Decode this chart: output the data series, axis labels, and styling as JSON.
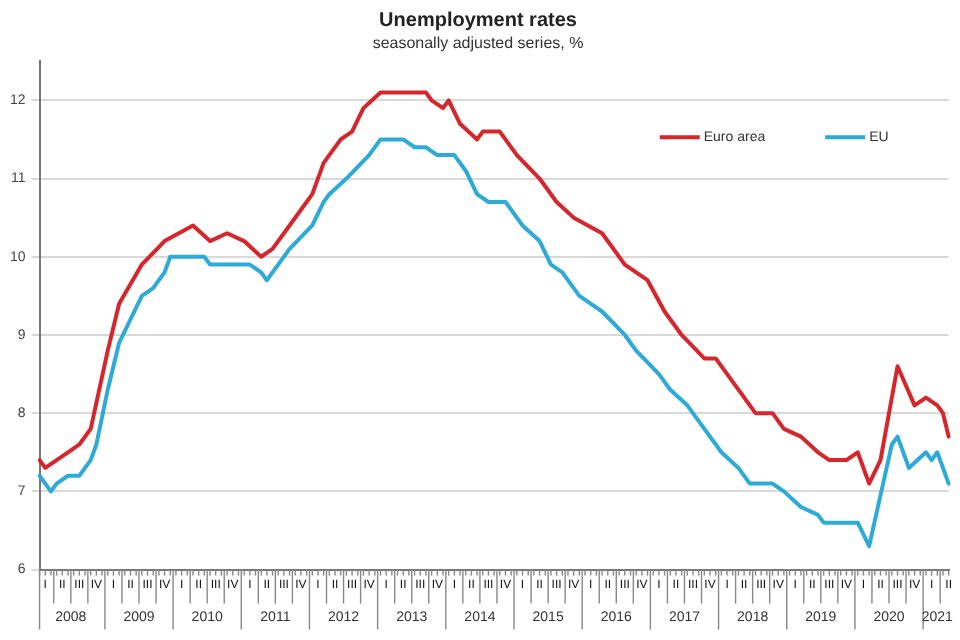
{
  "chart_data": {
    "type": "line",
    "title": "Unemployment rates",
    "subtitle": "seasonally adjusted series, %",
    "categories": [
      null,
      "I",
      null,
      null,
      "II",
      null,
      null,
      "III",
      null,
      null,
      "IV",
      null,
      null,
      "I",
      null,
      null,
      "II",
      null,
      null,
      "III",
      null,
      null,
      "IV",
      null,
      null,
      "I",
      null,
      null,
      "II",
      null,
      null,
      "III",
      null,
      null,
      "IV",
      null,
      null,
      "I",
      null,
      null,
      "II",
      null,
      null,
      "III",
      null,
      null,
      "IV",
      null,
      null,
      "I",
      null,
      null,
      "II",
      null,
      null,
      "III",
      null,
      null,
      "IV",
      null,
      null,
      "I",
      null,
      null,
      "II",
      null,
      null,
      "III",
      null,
      null,
      "IV",
      null,
      null,
      "I",
      null,
      null,
      "II",
      null,
      null,
      "III",
      null,
      null,
      "IV",
      null,
      null,
      "I",
      null,
      null,
      "II",
      null,
      null,
      "III",
      null,
      null,
      "IV",
      null,
      null,
      "I",
      null,
      null,
      "II",
      null,
      null,
      "III",
      null,
      null,
      "IV",
      null,
      null,
      "I",
      null,
      null,
      "II",
      null,
      null,
      "III",
      null,
      null,
      "IV",
      null,
      null,
      "I",
      null,
      null,
      "II",
      null,
      null,
      "III",
      null,
      null,
      "IV",
      null,
      null,
      "I",
      null,
      null,
      "II",
      null,
      null,
      "III",
      null,
      null,
      "IV",
      null,
      null,
      "I",
      null,
      null,
      "II",
      null,
      null,
      "III",
      null,
      null,
      "IV",
      null,
      null,
      "I",
      null,
      null,
      "II"
    ],
    "annotations": [
      "2008",
      "2009",
      "2010",
      "2011",
      "2012",
      "2013",
      "2014",
      "2015",
      "2016",
      "2017",
      "2018",
      "2019",
      "2020",
      "2021"
    ],
    "ylim": [
      6,
      12.5
    ],
    "yticks": [
      6,
      7,
      8,
      9,
      10,
      11,
      12
    ],
    "grid": "y",
    "legend": "top right",
    "marker": "none",
    "line_style": "solid",
    "series": [
      {
        "name": "Euro area",
        "color": "#d7262b",
        "values": [
          7.4,
          7.3,
          null,
          7.4,
          null,
          7.5,
          null,
          7.6,
          null,
          7.8,
          null,
          null,
          8.8,
          null,
          9.4,
          null,
          null,
          null,
          9.9,
          null,
          null,
          null,
          10.2,
          null,
          null,
          null,
          null,
          10.4,
          null,
          null,
          10.2,
          null,
          null,
          10.3,
          null,
          null,
          10.2,
          null,
          null,
          10.0,
          null,
          10.1,
          null,
          null,
          10.4,
          null,
          null,
          null,
          10.8,
          null,
          11.2,
          null,
          null,
          11.5,
          null,
          11.6,
          null,
          11.9,
          null,
          null,
          12.1,
          null,
          null,
          null,
          null,
          null,
          null,
          null,
          12.1,
          12.0,
          null,
          11.9,
          12.0,
          null,
          11.7,
          null,
          null,
          11.5,
          11.6,
          null,
          null,
          11.6,
          null,
          null,
          11.3,
          null,
          null,
          null,
          11.0,
          null,
          null,
          10.7,
          null,
          null,
          10.5,
          null,
          null,
          null,
          null,
          10.3,
          null,
          null,
          null,
          9.9,
          null,
          null,
          null,
          9.7,
          null,
          null,
          9.3,
          null,
          null,
          9.0,
          null,
          null,
          null,
          8.7,
          null,
          8.7,
          null,
          null,
          null,
          null,
          null,
          null,
          8.0,
          null,
          null,
          8.0,
          null,
          7.8,
          null,
          null,
          7.7,
          null,
          null,
          7.5,
          null,
          7.4,
          null,
          null,
          7.4,
          null,
          7.5,
          null,
          7.1,
          null,
          7.4,
          null,
          null,
          8.6,
          null,
          null,
          8.1,
          null,
          8.2,
          null,
          8.1,
          8.0,
          7.7
        ]
      },
      {
        "name": "EU",
        "color": "#2eaad8",
        "values": [
          7.2,
          null,
          7.0,
          7.1,
          null,
          7.2,
          null,
          7.2,
          null,
          7.4,
          7.6,
          null,
          8.3,
          null,
          8.9,
          null,
          9.2,
          null,
          9.5,
          null,
          9.6,
          null,
          9.8,
          10.0,
          null,
          null,
          null,
          null,
          null,
          10.0,
          9.9,
          null,
          null,
          null,
          null,
          null,
          null,
          9.9,
          null,
          9.8,
          9.7,
          9.8,
          null,
          null,
          10.1,
          null,
          null,
          null,
          10.4,
          null,
          10.7,
          10.8,
          null,
          null,
          11.0,
          null,
          null,
          null,
          11.3,
          null,
          11.5,
          null,
          null,
          null,
          11.5,
          null,
          11.4,
          null,
          11.4,
          null,
          11.3,
          null,
          null,
          11.3,
          null,
          11.1,
          null,
          10.8,
          null,
          10.7,
          null,
          null,
          10.7,
          null,
          null,
          10.4,
          null,
          null,
          10.2,
          null,
          9.9,
          null,
          9.8,
          null,
          null,
          9.5,
          null,
          null,
          null,
          9.3,
          null,
          null,
          null,
          9.0,
          null,
          8.8,
          null,
          null,
          null,
          8.5,
          null,
          8.3,
          null,
          null,
          8.1,
          null,
          null,
          7.8,
          null,
          null,
          7.5,
          null,
          null,
          7.3,
          null,
          7.1,
          null,
          null,
          null,
          7.1,
          null,
          7.0,
          null,
          null,
          6.8,
          null,
          null,
          6.7,
          6.6,
          null,
          null,
          null,
          null,
          null,
          6.6,
          null,
          6.3,
          null,
          null,
          null,
          7.6,
          7.7,
          null,
          7.3,
          null,
          null,
          7.5,
          7.4,
          7.5,
          null,
          7.1
        ]
      }
    ]
  }
}
